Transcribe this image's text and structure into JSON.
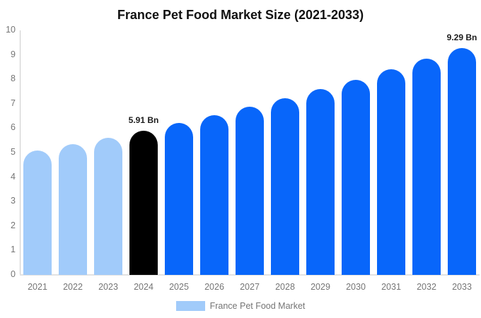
{
  "title": "France Pet Food Market Size (2021-2033)",
  "legend": {
    "label": "France Pet Food Market",
    "swatch_color": "#A1CBFA"
  },
  "colors": {
    "historical_bar": "#A1CBFA",
    "base_year_bar": "#000000",
    "forecast_bar": "#0866FA",
    "axis_line": "#cccccc",
    "baseline": "#e2e2e2",
    "tick_text": "#757575",
    "title_text": "#111111",
    "value_label_text": "#1c1c1c",
    "background": "#ffffff"
  },
  "chart_data": {
    "type": "bar",
    "title": "France Pet Food Market Size (2021-2033)",
    "categories": [
      "2021",
      "2022",
      "2023",
      "2024",
      "2025",
      "2026",
      "2027",
      "2028",
      "2029",
      "2030",
      "2031",
      "2032",
      "2033"
    ],
    "values": [
      5.08,
      5.35,
      5.61,
      5.91,
      6.21,
      6.53,
      6.87,
      7.22,
      7.6,
      7.99,
      8.4,
      8.83,
      9.29
    ],
    "unit": "Bn",
    "bar_colors": [
      "#A1CBFA",
      "#A1CBFA",
      "#A1CBFA",
      "#000000",
      "#0866FA",
      "#0866FA",
      "#0866FA",
      "#0866FA",
      "#0866FA",
      "#0866FA",
      "#0866FA",
      "#0866FA",
      "#0866FA"
    ],
    "xlabel": "",
    "ylabel": "",
    "ylim": [
      0,
      10
    ],
    "yticks": [
      0,
      1,
      2,
      3,
      4,
      5,
      6,
      7,
      8,
      9,
      10
    ],
    "grid": false,
    "legend_entries": [
      "France Pet Food Market"
    ],
    "legend_position": "bottom",
    "annotations": [
      {
        "category": "2024",
        "text": "5.91 Bn"
      },
      {
        "category": "2033",
        "text": "9.29 Bn"
      }
    ]
  }
}
